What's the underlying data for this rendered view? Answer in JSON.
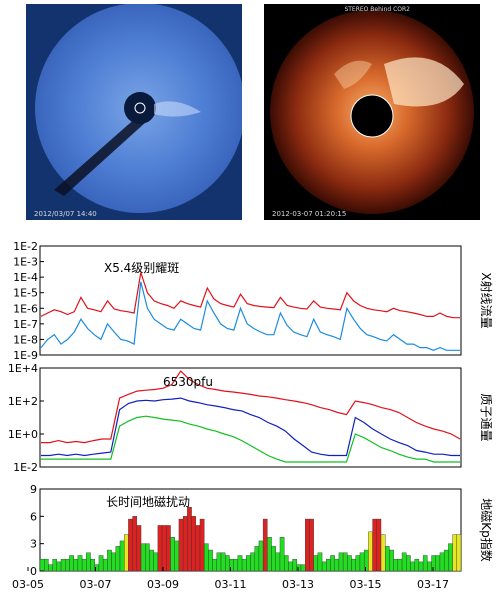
{
  "images": [
    {
      "timestamp": "2012/03/07 14:40"
    },
    {
      "header": "STEREO Behind COR2",
      "timestamp": "2012-03-07 01:20:15"
    }
  ],
  "chart_data": [
    {
      "type": "line",
      "ylabel": "X射线流量",
      "yscale": "log",
      "ylim": [
        "1E-9",
        "1E-2"
      ],
      "yticks": [
        "1E-9",
        "1E-8",
        "1E-7",
        "1E-6",
        "1E-5",
        "1E-4",
        "1E-3",
        "1E-2"
      ],
      "annotation": "X5.4级别耀斑",
      "series": [
        {
          "color": "#e0121a",
          "values": [
            3e-07,
            5e-07,
            8e-07,
            6e-07,
            4e-07,
            6e-07,
            5e-06,
            1e-06,
            8e-07,
            6e-07,
            3e-06,
            9e-07,
            7e-07,
            6e-07,
            5e-07,
            0.0002,
            1e-05,
            3e-06,
            2e-06,
            1.5e-06,
            1e-06,
            3e-06,
            2e-06,
            1.5e-06,
            1.2e-06,
            2e-05,
            4e-06,
            2e-06,
            1.5e-06,
            1.2e-06,
            8e-06,
            2e-06,
            1.5e-06,
            1.3e-06,
            1.2e-06,
            1.1e-06,
            5e-06,
            1.5e-06,
            1.2e-06,
            1e-06,
            9e-07,
            3e-06,
            1.2e-06,
            1e-06,
            9e-07,
            8e-07,
            1e-05,
            3e-06,
            1.5e-06,
            1e-06,
            8e-07,
            7e-07,
            6e-07,
            1e-06,
            7e-07,
            6e-07,
            5e-07,
            4e-07,
            3e-07,
            3e-07,
            5e-07,
            3e-07,
            2.5e-07,
            2.5e-07
          ]
        },
        {
          "color": "#1a8ce0",
          "values": [
            3e-09,
            1e-08,
            2e-08,
            5e-09,
            1e-08,
            3e-08,
            2e-07,
            5e-08,
            2e-08,
            1e-08,
            1e-07,
            3e-08,
            1e-08,
            8e-09,
            5e-09,
            5e-05,
            1e-06,
            2e-07,
            1e-07,
            5e-08,
            4e-08,
            2e-07,
            1e-07,
            5e-08,
            4e-08,
            3e-06,
            5e-07,
            1e-07,
            5e-08,
            4e-08,
            1e-06,
            1e-07,
            5e-08,
            3e-08,
            2e-08,
            2e-08,
            5e-07,
            8e-08,
            3e-08,
            2e-08,
            1.5e-08,
            2e-07,
            3e-08,
            2e-08,
            1.5e-08,
            1e-08,
            1e-06,
            2e-07,
            5e-08,
            2e-08,
            1.5e-08,
            1e-08,
            8e-09,
            2e-08,
            1e-08,
            5e-09,
            5e-09,
            3e-09,
            3e-09,
            2e-09,
            3e-09,
            2e-09,
            2e-09,
            2e-09
          ]
        }
      ]
    },
    {
      "type": "line",
      "ylabel": "质子通量",
      "yscale": "log",
      "ylim": [
        "1E-2",
        "1E+4"
      ],
      "yticks": [
        "1E-2",
        "1E+0",
        "1E+2",
        "1E+4"
      ],
      "annotation": "6530pfu",
      "series": [
        {
          "color": "#e0121a",
          "values": [
            0.3,
            0.3,
            0.4,
            0.3,
            0.35,
            0.3,
            0.4,
            0.5,
            0.5,
            150,
            250,
            400,
            450,
            500,
            600,
            1000,
            6530,
            2000,
            1000,
            600,
            500,
            400,
            350,
            300,
            250,
            200,
            180,
            150,
            120,
            100,
            80,
            60,
            40,
            30,
            20,
            15,
            100,
            80,
            60,
            40,
            30,
            20,
            10,
            5,
            3,
            2,
            1.5,
            1,
            0.5
          ]
        },
        {
          "color": "#1020c0",
          "values": [
            0.05,
            0.05,
            0.06,
            0.05,
            0.06,
            0.05,
            0.06,
            0.07,
            0.08,
            30,
            70,
            100,
            110,
            100,
            120,
            130,
            150,
            100,
            80,
            60,
            50,
            40,
            30,
            25,
            15,
            10,
            5,
            3,
            1.5,
            0.5,
            0.2,
            0.08,
            0.06,
            0.05,
            0.05,
            0.05,
            10,
            5,
            2,
            1,
            0.5,
            0.3,
            0.2,
            0.1,
            0.08,
            0.06,
            0.06,
            0.05,
            0.05
          ]
        },
        {
          "color": "#10c020",
          "values": [
            0.03,
            0.03,
            0.03,
            0.03,
            0.03,
            0.03,
            0.03,
            0.03,
            0.03,
            3,
            6,
            10,
            12,
            10,
            8,
            7,
            6,
            4,
            3,
            2,
            1.5,
            1,
            0.7,
            0.4,
            0.2,
            0.1,
            0.05,
            0.03,
            0.02,
            0.02,
            0.02,
            0.02,
            0.02,
            0.02,
            0.02,
            0.02,
            1,
            0.6,
            0.3,
            0.15,
            0.1,
            0.06,
            0.04,
            0.03,
            0.03,
            0.02,
            0.02,
            0.02,
            0.02
          ]
        }
      ]
    },
    {
      "type": "bar",
      "ylabel": "地磁Kp指数",
      "ylim": [
        0,
        9
      ],
      "yticks": [
        "0",
        "3",
        "6",
        "9"
      ],
      "annotation": "长时间地磁扰动",
      "xticks": [
        "03-05",
        "03-07",
        "03-09",
        "03-11",
        "03-13",
        "03-15",
        "03-17"
      ],
      "level_colors": {
        "quiet": "#22dd22",
        "active": "#e6e623",
        "storm": "#dd2222"
      },
      "values": [
        1.3,
        1.3,
        0.7,
        1.3,
        1,
        1.3,
        1.3,
        1.7,
        1.3,
        1.7,
        1.3,
        2,
        1.3,
        0.7,
        1.7,
        1.3,
        2.3,
        2,
        2.7,
        3.3,
        4,
        5.7,
        6,
        5,
        3,
        3,
        2.3,
        2,
        5,
        5,
        5,
        3.7,
        3.3,
        5.7,
        6,
        7,
        6,
        5,
        5.7,
        3,
        2.3,
        1.3,
        2,
        2,
        1.7,
        1.3,
        1.3,
        1.7,
        1.3,
        1.7,
        2,
        2.7,
        3.3,
        5.7,
        3.7,
        2.7,
        2,
        3.7,
        1.7,
        1,
        1.3,
        0.7,
        0.7,
        5.7,
        5.7,
        1.7,
        2,
        1,
        1.3,
        1.7,
        1.3,
        2,
        2,
        1.7,
        1.3,
        1.7,
        2,
        2.3,
        4.3,
        5.7,
        5.7,
        4,
        2.7,
        2.3,
        1.3,
        1.3,
        2,
        1.7,
        1,
        1.3,
        1,
        1.7,
        1,
        1.7,
        1.7,
        2,
        2.3,
        3,
        4,
        4
      ]
    }
  ]
}
